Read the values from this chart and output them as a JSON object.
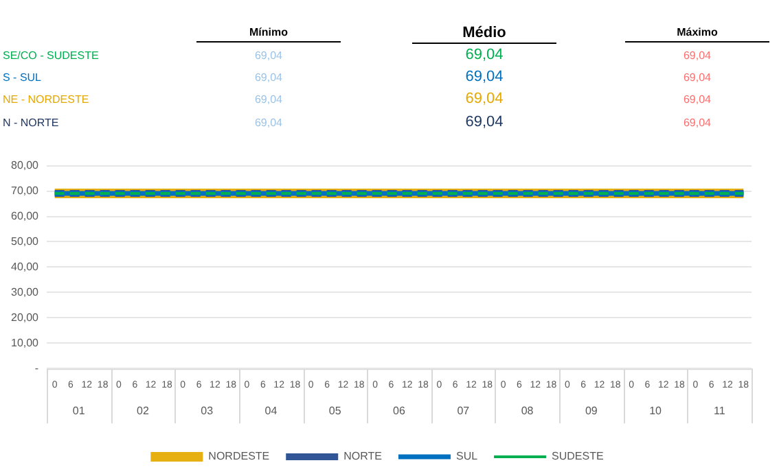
{
  "chart_data": [
    {
      "type": "other",
      "annotations": [
        "Mínimo",
        "Médio",
        "Máximo",
        "SE/CO - SUDESTE",
        "69,04",
        "69,04",
        "69,04",
        "S - SUL",
        "69,04",
        "69,04",
        "69,04",
        "NE - NORDESTE",
        "69,04",
        "69,04",
        "69,04",
        "N - NORTE",
        "69,04",
        "69,04",
        "69,04"
      ],
      "colors": [
        "#000000",
        "#000000",
        "#000000",
        "#00b050",
        "#9dc3e6",
        "#00b050",
        "#ff6f6f",
        "#0070c0",
        "#9dc3e6",
        "#0070c0",
        "#ff6f6f",
        "#e6a800",
        "#9dc3e6",
        "#e6a800",
        "#ff6f6f",
        "#203864",
        "#9dc3e6",
        "#203864",
        "#ff6f6f"
      ]
    },
    {
      "type": "line",
      "categories": [
        "0",
        "6",
        "12",
        "18",
        "0",
        "6",
        "12",
        "18",
        "0",
        "6",
        "12",
        "18",
        "0",
        "6",
        "12",
        "18",
        "0",
        "6",
        "12",
        "18",
        "0",
        "6",
        "12",
        "18",
        "0",
        "6",
        "12",
        "18",
        "0",
        "6",
        "12",
        "18",
        "0",
        "6",
        "12",
        "18",
        "0",
        "6",
        "12",
        "18",
        "0",
        "6",
        "12",
        "18"
      ],
      "annotations": [
        "01",
        "02",
        "03",
        "04",
        "05",
        "06",
        "07",
        "08",
        "09",
        "10",
        "11"
      ],
      "ylim": [
        0,
        80
      ],
      "yticks": [
        {
          "value": 0,
          "label": "-"
        },
        {
          "value": 10,
          "label": "10,00"
        },
        {
          "value": 20,
          "label": "20,00"
        },
        {
          "value": 30,
          "label": "30,00"
        },
        {
          "value": 40,
          "label": "40,00"
        },
        {
          "value": 50,
          "label": "50,00"
        },
        {
          "value": 60,
          "label": "60,00"
        },
        {
          "value": 70,
          "label": "70,00"
        },
        {
          "value": 80,
          "label": "80,00"
        }
      ],
      "grid": "y",
      "legend": "bottom",
      "marker": "none",
      "series": [
        {
          "name": "NORDESTE",
          "color": "#e6b012",
          "line_style": "solid",
          "values": [
            69.04,
            69.04,
            69.04,
            69.04,
            69.04,
            69.04,
            69.04,
            69.04,
            69.04,
            69.04,
            69.04,
            69.04,
            69.04,
            69.04,
            69.04,
            69.04,
            69.04,
            69.04,
            69.04,
            69.04,
            69.04,
            69.04,
            69.04,
            69.04,
            69.04,
            69.04,
            69.04,
            69.04,
            69.04,
            69.04,
            69.04,
            69.04,
            69.04,
            69.04,
            69.04,
            69.04,
            69.04,
            69.04,
            69.04,
            69.04,
            69.04,
            69.04,
            69.04,
            69.04
          ]
        },
        {
          "name": "NORTE",
          "color": "#2f5597",
          "line_style": "dashed",
          "values": [
            69.04,
            69.04,
            69.04,
            69.04,
            69.04,
            69.04,
            69.04,
            69.04,
            69.04,
            69.04,
            69.04,
            69.04,
            69.04,
            69.04,
            69.04,
            69.04,
            69.04,
            69.04,
            69.04,
            69.04,
            69.04,
            69.04,
            69.04,
            69.04,
            69.04,
            69.04,
            69.04,
            69.04,
            69.04,
            69.04,
            69.04,
            69.04,
            69.04,
            69.04,
            69.04,
            69.04,
            69.04,
            69.04,
            69.04,
            69.04,
            69.04,
            69.04,
            69.04,
            69.04
          ]
        },
        {
          "name": "SUL",
          "color": "#0070c0",
          "line_style": "solid",
          "values": [
            69.04,
            69.04,
            69.04,
            69.04,
            69.04,
            69.04,
            69.04,
            69.04,
            69.04,
            69.04,
            69.04,
            69.04,
            69.04,
            69.04,
            69.04,
            69.04,
            69.04,
            69.04,
            69.04,
            69.04,
            69.04,
            69.04,
            69.04,
            69.04,
            69.04,
            69.04,
            69.04,
            69.04,
            69.04,
            69.04,
            69.04,
            69.04,
            69.04,
            69.04,
            69.04,
            69.04,
            69.04,
            69.04,
            69.04,
            69.04,
            69.04,
            69.04,
            69.04,
            69.04
          ]
        },
        {
          "name": "SUDESTE",
          "color": "#00b050",
          "line_style": "dashed",
          "values": [
            69.04,
            69.04,
            69.04,
            69.04,
            69.04,
            69.04,
            69.04,
            69.04,
            69.04,
            69.04,
            69.04,
            69.04,
            69.04,
            69.04,
            69.04,
            69.04,
            69.04,
            69.04,
            69.04,
            69.04,
            69.04,
            69.04,
            69.04,
            69.04,
            69.04,
            69.04,
            69.04,
            69.04,
            69.04,
            69.04,
            69.04,
            69.04,
            69.04,
            69.04,
            69.04,
            69.04,
            69.04,
            69.04,
            69.04,
            69.04,
            69.04,
            69.04,
            69.04,
            69.04
          ]
        }
      ]
    }
  ]
}
